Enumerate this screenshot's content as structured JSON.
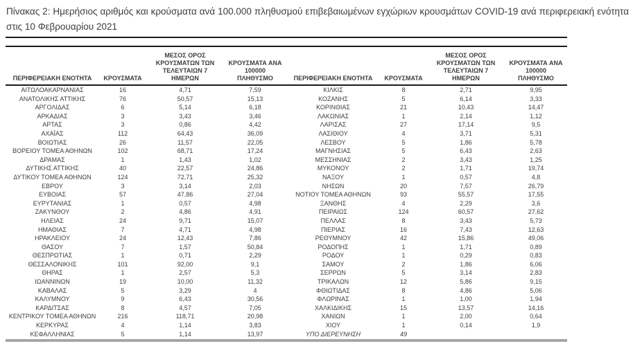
{
  "title": "Πίνακας 2:  Ημερήσιος αριθμός και κρούσματα ανά 100.000 πληθυσμού επιβεβαιωμένων εγχώριων κρουσμάτων COVID-19 ανά περιφερειακή ενότητα στις 10 Φεβρουαρίου 2021",
  "colors": {
    "text": "#3d3d3d",
    "border_black": "#1a1a1a",
    "border_gray": "#a6a6a6",
    "background": "#ffffff"
  },
  "table": {
    "columns": [
      "ΠΕΡΙΦΕΡΕΙΑΚΗ ΕΝΟΤΗΤΑ",
      "ΚΡΟΥΣΜΑΤΑ",
      "ΜΕΣΟΣ ΟΡΟΣ ΚΡΟΥΣΜΑΤΩΝ ΤΩΝ ΤΕΛΕΥΤΑΙΩΝ 7 ΗΜΕΡΩΝ",
      "ΚΡΟΥΣΜΑΤΑ ΑΝΑ 100000 ΠΛΗΘΥΣΜΟ"
    ],
    "left_rows": [
      {
        "name": "ΑΙΤΩΛΟΑΚΑΡΝΑΝΙΑΣ",
        "cases": "16",
        "avg": "4,71",
        "per_100k": "7,59"
      },
      {
        "name": "ΑΝΑΤΟΛΙΚΗΣ ΑΤΤΙΚΗΣ",
        "cases": "76",
        "avg": "50,57",
        "per_100k": "15,13"
      },
      {
        "name": "ΑΡΓΟΛΙΔΑΣ",
        "cases": "6",
        "avg": "5,14",
        "per_100k": "6,18"
      },
      {
        "name": "ΑΡΚΑΔΙΑΣ",
        "cases": "3",
        "avg": "3,43",
        "per_100k": "3,46"
      },
      {
        "name": "ΑΡΤΑΣ",
        "cases": "3",
        "avg": "0,86",
        "per_100k": "4,42"
      },
      {
        "name": "ΑΧΑΪΑΣ",
        "cases": "112",
        "avg": "64,43",
        "per_100k": "36,09"
      },
      {
        "name": "ΒΟΙΩΤΙΑΣ",
        "cases": "26",
        "avg": "11,57",
        "per_100k": "22,05"
      },
      {
        "name": "ΒΟΡΕΙΟΥ ΤΟΜΕΑ ΑΘΗΝΩΝ",
        "cases": "102",
        "avg": "68,71",
        "per_100k": "17,24"
      },
      {
        "name": "ΔΡΑΜΑΣ",
        "cases": "1",
        "avg": "1,43",
        "per_100k": "1,02"
      },
      {
        "name": "ΔΥΤΙΚΗΣ ΑΤΤΙΚΗΣ",
        "cases": "40",
        "avg": "22,57",
        "per_100k": "24,86"
      },
      {
        "name": "ΔΥΤΙΚΟΥ ΤΟΜΕΑ ΑΘΗΝΩΝ",
        "cases": "124",
        "avg": "72,71",
        "per_100k": "25,32"
      },
      {
        "name": "ΕΒΡΟΥ",
        "cases": "3",
        "avg": "3,14",
        "per_100k": "2,03"
      },
      {
        "name": "ΕΥΒΟΙΑΣ",
        "cases": "57",
        "avg": "47,86",
        "per_100k": "27,04"
      },
      {
        "name": "ΕΥΡΥΤΑΝΙΑΣ",
        "cases": "1",
        "avg": "0,57",
        "per_100k": "4,98"
      },
      {
        "name": "ΖΑΚΥΝΘΟΥ",
        "cases": "2",
        "avg": "4,86",
        "per_100k": "4,91"
      },
      {
        "name": "ΗΛΕΙΑΣ",
        "cases": "24",
        "avg": "9,71",
        "per_100k": "15,07"
      },
      {
        "name": "ΗΜΑΘΙΑΣ",
        "cases": "7",
        "avg": "4,71",
        "per_100k": "4,98"
      },
      {
        "name": "ΗΡΑΚΛΕΙΟΥ",
        "cases": "24",
        "avg": "12,43",
        "per_100k": "7,86"
      },
      {
        "name": "ΘΑΣΟΥ",
        "cases": "7",
        "avg": "1,57",
        "per_100k": "50,84"
      },
      {
        "name": "ΘΕΣΠΡΩΤΙΑΣ",
        "cases": "1",
        "avg": "0,71",
        "per_100k": "2,29"
      },
      {
        "name": "ΘΕΣΣΑΛΟΝΙΚΗΣ",
        "cases": "101",
        "avg": "92,00",
        "per_100k": "9,1"
      },
      {
        "name": "ΘΗΡΑΣ",
        "cases": "1",
        "avg": "2,57",
        "per_100k": "5,3"
      },
      {
        "name": "ΙΩΑΝΝΙΝΩΝ",
        "cases": "19",
        "avg": "10,00",
        "per_100k": "11,32"
      },
      {
        "name": "ΚΑΒΑΛΑΣ",
        "cases": "5",
        "avg": "3,29",
        "per_100k": "4"
      },
      {
        "name": "ΚΑΛΥΜΝΟΥ",
        "cases": "9",
        "avg": "6,43",
        "per_100k": "30,56"
      },
      {
        "name": "ΚΑΡΔΙΤΣΑΣ",
        "cases": "8",
        "avg": "4,57",
        "per_100k": "7,05"
      },
      {
        "name": "ΚΕΝΤΡΙΚΟΥ ΤΟΜΕΑ ΑΘΗΝΩΝ",
        "cases": "216",
        "avg": "118,71",
        "per_100k": "20,98"
      },
      {
        "name": "ΚΕΡΚΥΡΑΣ",
        "cases": "4",
        "avg": "1,14",
        "per_100k": "3,83"
      },
      {
        "name": "ΚΕΦΑΛΛΗΝΙΑΣ",
        "cases": "5",
        "avg": "1,14",
        "per_100k": "13,97"
      }
    ],
    "right_rows": [
      {
        "name": "ΚΙΛΚΙΣ",
        "cases": "8",
        "avg": "2,71",
        "per_100k": "9,95"
      },
      {
        "name": "ΚΟΖΑΝΗΣ",
        "cases": "5",
        "avg": "6,14",
        "per_100k": "3,33"
      },
      {
        "name": "ΚΟΡΙΝΘΙΑΣ",
        "cases": "21",
        "avg": "10,43",
        "per_100k": "14,47"
      },
      {
        "name": "ΛΑΚΩΝΙΑΣ",
        "cases": "1",
        "avg": "2,14",
        "per_100k": "1,12"
      },
      {
        "name": "ΛΑΡΙΣΑΣ",
        "cases": "27",
        "avg": "17,14",
        "per_100k": "9,5"
      },
      {
        "name": "ΛΑΣΙΘΙΟΥ",
        "cases": "4",
        "avg": "3,71",
        "per_100k": "5,31"
      },
      {
        "name": "ΛΕΣΒΟΥ",
        "cases": "5",
        "avg": "1,86",
        "per_100k": "5,78"
      },
      {
        "name": "ΜΑΓΝΗΣΙΑΣ",
        "cases": "5",
        "avg": "6,43",
        "per_100k": "2,63"
      },
      {
        "name": "ΜΕΣΣΗΝΙΑΣ",
        "cases": "2",
        "avg": "3,43",
        "per_100k": "1,25"
      },
      {
        "name": "ΜΥΚΟΝΟΥ",
        "cases": "2",
        "avg": "1,71",
        "per_100k": "19,74"
      },
      {
        "name": "ΝΑΞΟΥ",
        "cases": "1",
        "avg": "0,57",
        "per_100k": "4,8"
      },
      {
        "name": "ΝΗΣΩΝ",
        "cases": "20",
        "avg": "7,57",
        "per_100k": "26,79"
      },
      {
        "name": "ΝΟΤΙΟΥ ΤΟΜΕΑ ΑΘΗΝΩΝ",
        "cases": "93",
        "avg": "55,57",
        "per_100k": "17,55"
      },
      {
        "name": "ΞΑΝΘΗΣ",
        "cases": "4",
        "avg": "2,29",
        "per_100k": "3,6"
      },
      {
        "name": "ΠΕΙΡΑΙΩΣ",
        "cases": "124",
        "avg": "60,57",
        "per_100k": "27,62"
      },
      {
        "name": "ΠΕΛΛΑΣ",
        "cases": "8",
        "avg": "3,43",
        "per_100k": "5,73"
      },
      {
        "name": "ΠΙΕΡΙΑΣ",
        "cases": "16",
        "avg": "7,43",
        "per_100k": "12,63"
      },
      {
        "name": "ΡΕΘΥΜΝΟΥ",
        "cases": "42",
        "avg": "15,86",
        "per_100k": "49,06"
      },
      {
        "name": "ΡΟΔΟΠΗΣ",
        "cases": "1",
        "avg": "1,71",
        "per_100k": "0,89"
      },
      {
        "name": "ΡΟΔΟΥ",
        "cases": "1",
        "avg": "0,29",
        "per_100k": "0,83"
      },
      {
        "name": "ΣΑΜΟΥ",
        "cases": "2",
        "avg": "1,86",
        "per_100k": "6,06"
      },
      {
        "name": "ΣΕΡΡΩΝ",
        "cases": "5",
        "avg": "3,14",
        "per_100k": "2,83"
      },
      {
        "name": "ΤΡΙΚΑΛΩΝ",
        "cases": "12",
        "avg": "5,86",
        "per_100k": "9,15"
      },
      {
        "name": "ΦΘΙΩΤΙΔΑΣ",
        "cases": "8",
        "avg": "4,86",
        "per_100k": "5,06"
      },
      {
        "name": "ΦΛΩΡΙΝΑΣ",
        "cases": "1",
        "avg": "1,00",
        "per_100k": "1,94"
      },
      {
        "name": "ΧΑΛΚΙΔΙΚΗΣ",
        "cases": "15",
        "avg": "13,57",
        "per_100k": "14,16"
      },
      {
        "name": "ΧΑΝΙΩΝ",
        "cases": "1",
        "avg": "2,00",
        "per_100k": "0,64"
      },
      {
        "name": "ΧΙΟΥ",
        "cases": "1",
        "avg": "0,14",
        "per_100k": "1,9"
      },
      {
        "name": "ΥΠΟ ΔΙΕΡΕΥΝΗΣΗ",
        "cases": "49",
        "avg": "",
        "per_100k": "",
        "italic": true
      }
    ]
  }
}
